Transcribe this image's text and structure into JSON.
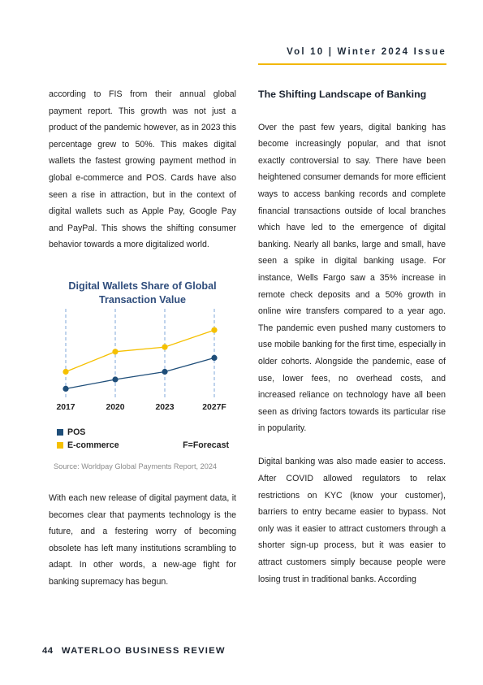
{
  "header": {
    "issue": "Vol 10 | Winter 2024 Issue"
  },
  "left_column": {
    "top_paragraph": "according to FIS from their annual global payment report. This growth was not just a product of the pandemic however, as in 2023 this percentage grew to 50%. This makes digital wallets the fastest growing payment method in global e-commerce and POS. Cards have also seen a rise in attraction, but in the context of digital wallets such as Apple Pay, Google Pay and PayPal. This shows the shifting consumer behavior towards a more digitalized world.",
    "bottom_paragraph": "With each new release of digital payment data, it becomes clear that payments technology is the future, and a festering worry of becoming obsolete has left many institutions scrambling to adapt. In other words, a new-age fight for banking supremacy has begun."
  },
  "right_column": {
    "section_title": "The Shifting Landscape of Banking",
    "paragraph_1": "Over the past few years, digital banking has become increasingly popular, and that isnot exactly controversial to say. There have been heightened consumer demands for more efficient ways to access banking records and complete financial transactions outside of local branches which have led to the emergence of digital banking. Nearly all banks, large and small, have seen a spike in digital banking usage. For instance, Wells Fargo saw a 35% increase in remote check deposits and a 50% growth in online wire transfers compared to a year ago. The pandemic even pushed many customers to use mobile banking for the first time, especially in older cohorts. Alongside the pandemic, ease of use, lower fees, no overhead costs, and increased reliance on technology have all been seen as driving factors towards its particular rise in popularity.",
    "paragraph_2": "Digital banking was also made easier to access. After COVID allowed regulators to relax restrictions on KYC (know your customer), barriers to entry became easier to bypass. Not only was it easier to attract customers through a shorter sign-up process, but it was easier to attract customers simply because people were losing trust in traditional banks. According"
  },
  "chart_data": {
    "type": "line",
    "title": "Digital Wallets Share of Global Transaction Value",
    "categories": [
      "2017",
      "2020",
      "2023",
      "2027F"
    ],
    "series": [
      {
        "name": "POS",
        "color": "#1f4e79",
        "values": [
          4,
          10,
          15,
          24
        ]
      },
      {
        "name": "E-commerce",
        "color": "#f5c000",
        "values": [
          15,
          28,
          31,
          42
        ]
      }
    ],
    "ylim": [
      0,
      50
    ],
    "grid": "vertical dashed",
    "legend_note": "F=Forecast",
    "source": "Source: Worldpay Global Payments Report, 2024"
  },
  "footer": {
    "page_number": "44",
    "publication": "WATERLOO BUSINESS REVIEW"
  }
}
